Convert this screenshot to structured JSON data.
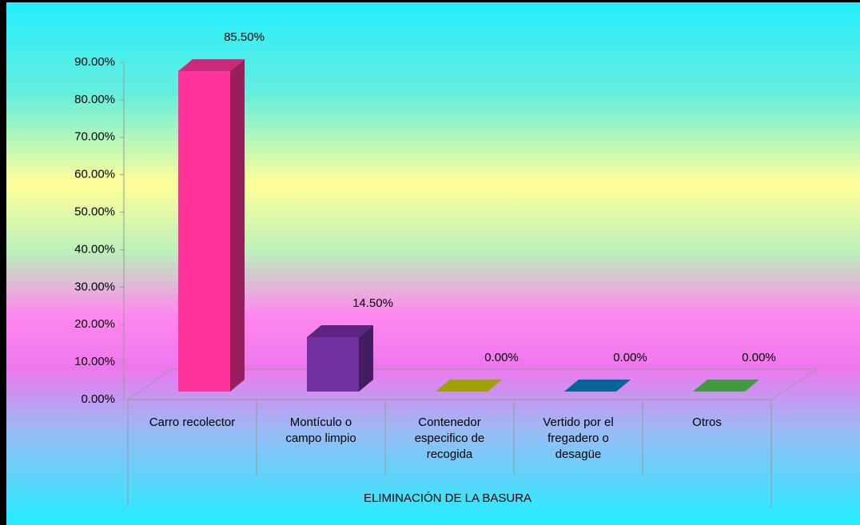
{
  "chart_data": {
    "type": "bar3d",
    "categories": [
      "Carro recolector",
      "Montículo o campo limpio",
      "Contenedor especifico de recogida",
      "Vertido por el fregadero o desagüe",
      "Otros"
    ],
    "values": [
      85.5,
      14.5,
      0,
      0,
      0
    ],
    "value_labels": [
      "85.50%",
      "14.50%",
      "0.00%",
      "0.00%",
      "0.00%"
    ],
    "colors": [
      "#ff3399",
      "#7030a0",
      "#c8c800",
      "#0080c0",
      "#50c050"
    ],
    "xlabel": "ELIMINACIÓN DE LA BASURA",
    "ylim": [
      0,
      90
    ],
    "yticks": [
      {
        "value": 0,
        "label": "0.00%"
      },
      {
        "value": 10,
        "label": "10.00%"
      },
      {
        "value": 20,
        "label": "20.00%"
      },
      {
        "value": 30,
        "label": "30.00%"
      },
      {
        "value": 40,
        "label": "40.00%"
      },
      {
        "value": 50,
        "label": "50.00%"
      },
      {
        "value": 60,
        "label": "60.00%"
      },
      {
        "value": 70,
        "label": "70.00%"
      },
      {
        "value": 80,
        "label": "80.00%"
      },
      {
        "value": 90,
        "label": "90.00%"
      }
    ]
  }
}
